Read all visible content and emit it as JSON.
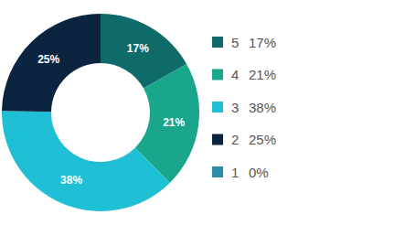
{
  "chart_data": {
    "type": "donut",
    "categories": [
      "5",
      "4",
      "3",
      "2",
      "1"
    ],
    "values": [
      17,
      21,
      38,
      25,
      0
    ],
    "value_labels": [
      "17%",
      "21%",
      "38%",
      "25%",
      "0%"
    ],
    "colors": [
      "#0f6b69",
      "#19a68b",
      "#1fc0d6",
      "#0b2540",
      "#2c8ea3"
    ],
    "data_labels": true,
    "legend": "right"
  }
}
